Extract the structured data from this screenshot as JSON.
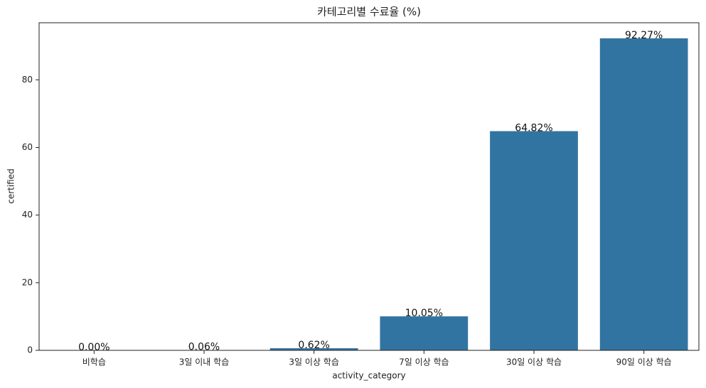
{
  "chart_data": {
    "type": "bar",
    "title": "카테고리별 수료율 (%)",
    "x_label": "activity_category",
    "y_label": "certified",
    "categories": [
      "비학습",
      "3일 이내 학습",
      "3일 이상 학습",
      "7일 이상 학습",
      "30일 이상 학습",
      "90일 이상 학습"
    ],
    "values": [
      0,
      0.06,
      0.62,
      10.05,
      64.82,
      92.27
    ],
    "value_labels": [
      "0.00%",
      "0.06%",
      "0.62%",
      "10.05%",
      "64.82%",
      "92.27%"
    ],
    "color": "#3274a1",
    "ylim": [
      0,
      96.88
    ],
    "yticks": [
      0,
      20,
      40,
      60,
      80
    ],
    "grid": false
  }
}
